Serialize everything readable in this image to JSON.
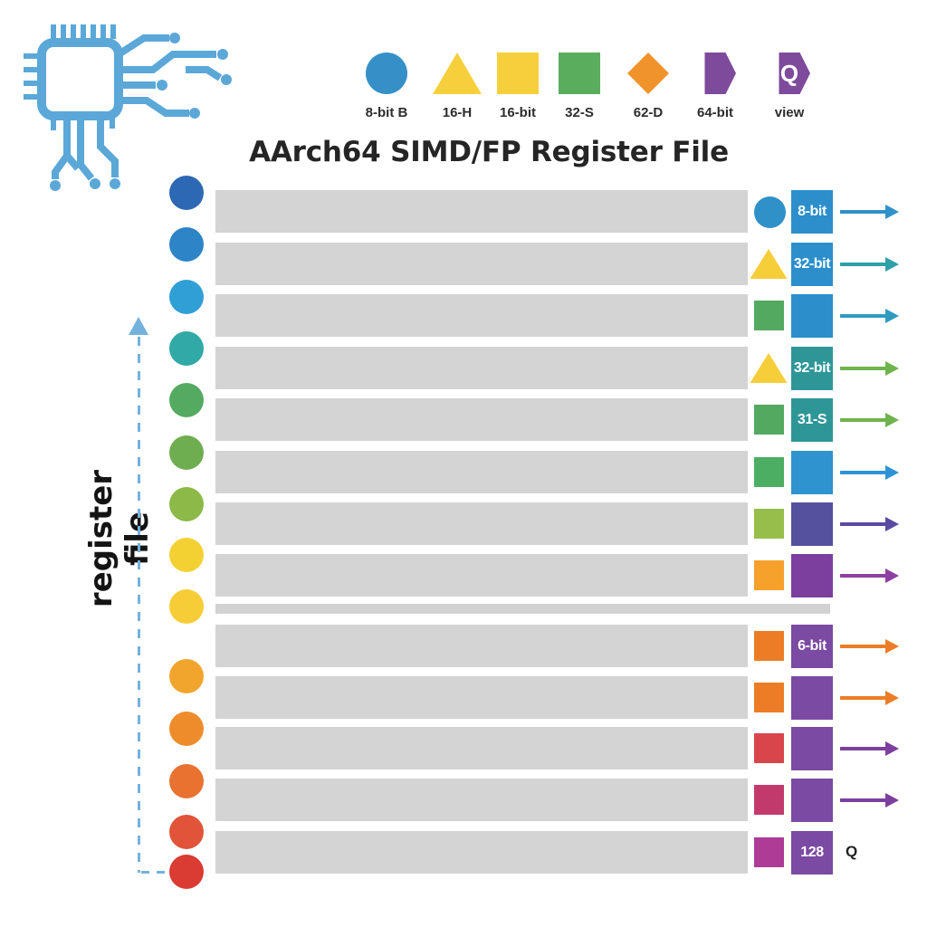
{
  "title": "AArch64 SIMD/FP Register File",
  "side_label": "register file",
  "legend": {
    "items": [
      {
        "shape": "circle",
        "color": "#3590c8",
        "label": "8-bit B",
        "glyph": ""
      },
      {
        "shape": "triangle",
        "color": "#f6d03c",
        "label": "16-H",
        "glyph": ""
      },
      {
        "shape": "square",
        "color": "#f6d03c",
        "label": "16-bit",
        "glyph": ""
      },
      {
        "shape": "square",
        "color": "#5bad5e",
        "label": "32-S",
        "glyph": ""
      },
      {
        "shape": "diamond",
        "color": "#f0932b",
        "label": "62-D",
        "glyph": ""
      },
      {
        "shape": "hexagon",
        "color": "#7e4a9c",
        "label": "64-bit",
        "glyph": ""
      },
      {
        "shape": "hexagon",
        "color": "#7e4a9c",
        "label": "view",
        "glyph": "Q"
      }
    ]
  },
  "register_file": {
    "bar_color": "#d4d4d4",
    "separator_color": "#d2d2d2",
    "dot_colors": [
      "#2d68b4",
      "#2d84c6",
      "#309fd6",
      "#30a9a7",
      "#54aa61",
      "#6fae50",
      "#8cb947",
      "#f4d133",
      "#f6cd36",
      "#f2a52d",
      "#ee8c2b",
      "#e97231",
      "#e25439",
      "#da3b33"
    ]
  },
  "rows": [
    {
      "shape": "circle",
      "shape_color": "#3090c8",
      "box_color": "#2c8fcc",
      "box_label": "8-bit",
      "arrow_color": "#3090c8",
      "end_label": ""
    },
    {
      "shape": "triangle",
      "shape_color": "#f6ce3a",
      "box_color": "#2c8fcc",
      "box_label": "32-bit",
      "arrow_color": "#2fa0a8",
      "end_label": ""
    },
    {
      "shape": "square",
      "shape_color": "#53a95f",
      "box_color": "#2c8fcc",
      "box_label": "",
      "arrow_color": "#2f9bc0",
      "end_label": ""
    },
    {
      "shape": "triangle",
      "shape_color": "#f6ce3a",
      "box_color": "#2f9698",
      "box_label": "32-bit",
      "arrow_color": "#6fb34c",
      "end_label": ""
    },
    {
      "shape": "square",
      "shape_color": "#53a95f",
      "box_color": "#2f9698",
      "box_label": "31-S",
      "arrow_color": "#6fb34c",
      "end_label": ""
    },
    {
      "shape": "square",
      "shape_color": "#4cae62",
      "box_color": "#2e93ce",
      "box_label": "",
      "arrow_color": "#2e93d6",
      "end_label": ""
    },
    {
      "shape": "square",
      "shape_color": "#97be4b",
      "box_color": "#55519f",
      "box_label": "",
      "arrow_color": "#5c49a2",
      "end_label": ""
    },
    {
      "shape": "square",
      "shape_color": "#f5a12c",
      "box_color": "#7c3f9e",
      "box_label": "",
      "arrow_color": "#8f3fa2",
      "end_label": ""
    },
    {
      "shape": "square",
      "shape_color": "#ec7d26",
      "box_color": "#7b4aa2",
      "box_label": "6-bit",
      "arrow_color": "#ec7d26",
      "end_label": ""
    },
    {
      "shape": "square",
      "shape_color": "#ec7d26",
      "box_color": "#7b4aa2",
      "box_label": "",
      "arrow_color": "#ec7d26",
      "end_label": ""
    },
    {
      "shape": "square",
      "shape_color": "#d8464c",
      "box_color": "#7b4aa2",
      "box_label": "",
      "arrow_color": "#7c3f9e",
      "end_label": ""
    },
    {
      "shape": "square",
      "shape_color": "#c23a6c",
      "box_color": "#7b4aa2",
      "box_label": "",
      "arrow_color": "#7c3f9e",
      "end_label": ""
    },
    {
      "shape": "square",
      "shape_color": "#ac3c96",
      "box_color": "#7b4aa2",
      "box_label": "128",
      "arrow_color": "",
      "end_label": "Q"
    }
  ],
  "icons": {
    "chip_color": "#5ba8d8",
    "dashed_arrow_color": "#74b2dc"
  }
}
